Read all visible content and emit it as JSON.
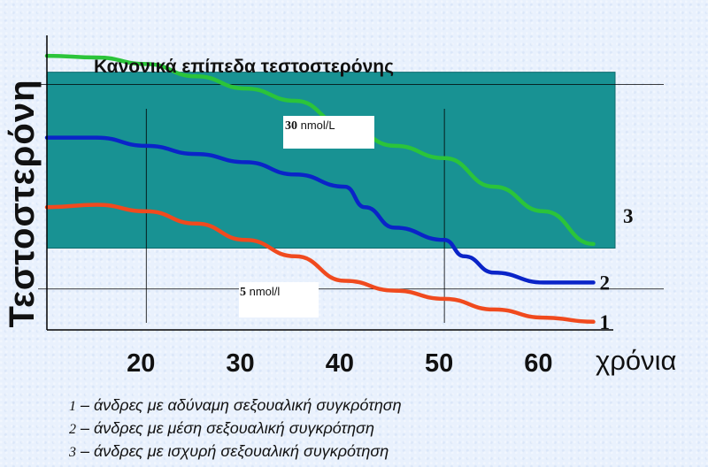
{
  "chart_data": {
    "type": "line",
    "title": "Κανονικά επίπεδα τεστοστερόνης",
    "ylabel": "Τεστοστερόνη",
    "xlabel": "χρόνια",
    "xlim": [
      10,
      67
    ],
    "ylim": [
      0,
      36
    ],
    "x_ticks": [
      "20",
      "30",
      "40",
      "50",
      "60"
    ],
    "normal_band": {
      "low": 10,
      "high": 31.5
    },
    "reference_lines": [
      {
        "value": 30,
        "bold": "30",
        "unit": "nmol/L"
      },
      {
        "value": 5,
        "bold": "5",
        "unit": "nmol/l"
      }
    ],
    "series": [
      {
        "name": "3",
        "color": "#2bc43a",
        "x": [
          10,
          15,
          20,
          25,
          30,
          35,
          40,
          45,
          50,
          55,
          60,
          65
        ],
        "y": [
          33.5,
          33.3,
          32.5,
          31,
          29.5,
          28,
          25,
          22.5,
          21,
          17.5,
          14.5,
          10.5
        ]
      },
      {
        "name": "2",
        "color": "#0a24c8",
        "x": [
          10,
          15,
          20,
          25,
          30,
          35,
          40,
          42,
          45,
          50,
          52,
          55,
          60,
          65
        ],
        "y": [
          23.5,
          23.5,
          22.5,
          21.5,
          20.5,
          19,
          17.5,
          15,
          12.5,
          11,
          9,
          7,
          5.8,
          5.8
        ]
      },
      {
        "name": "1",
        "color": "#f04a1e",
        "x": [
          10,
          15,
          20,
          25,
          30,
          35,
          40,
          45,
          50,
          55,
          60,
          65
        ],
        "y": [
          15,
          15.3,
          14.5,
          13,
          11,
          9,
          6,
          4.8,
          3.8,
          2.5,
          1.5,
          1
        ]
      }
    ]
  },
  "legend": [
    {
      "num": "1",
      "text": " – άνδρες με αδύναμη σεξουαλική συγκρότηση"
    },
    {
      "num": "2",
      "text": " – άνδρες με μέση σεξουαλική συγκρότηση"
    },
    {
      "num": "3",
      "text": " – άνδρες με ισχυρή σεξουαλική συγκρότηση"
    }
  ],
  "colors": {
    "band": "#189293",
    "axis": "#000000"
  }
}
